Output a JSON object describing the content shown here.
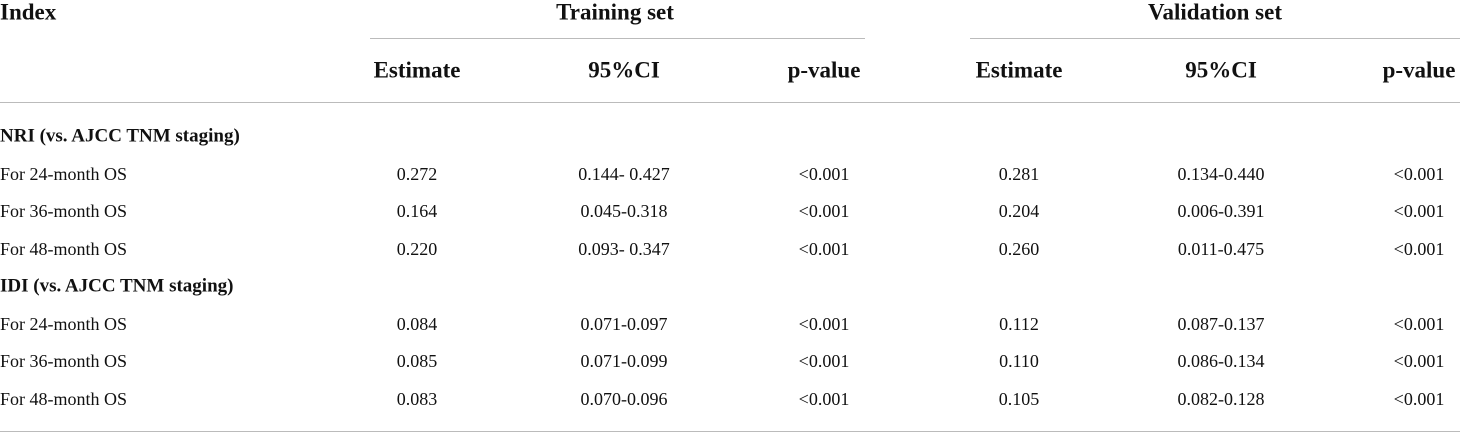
{
  "header": {
    "index": "Index",
    "groups": [
      "Training set",
      "Validation set"
    ],
    "columns": [
      "Estimate",
      "95%CI",
      "p-value",
      "Estimate",
      "95%CI",
      "p-value"
    ]
  },
  "sections": [
    {
      "title": "NRI (vs. AJCC TNM staging)",
      "rows": [
        {
          "label": "For 24-month OS",
          "cells": [
            "0.272",
            "0.144- 0.427",
            "<0.001",
            "0.281",
            "0.134-0.440",
            "<0.001"
          ]
        },
        {
          "label": "For 36-month OS",
          "cells": [
            "0.164",
            "0.045-0.318",
            "<0.001",
            "0.204",
            "0.006-0.391",
            "<0.001"
          ]
        },
        {
          "label": "For 48-month OS",
          "cells": [
            "0.220",
            "0.093- 0.347",
            "<0.001",
            "0.260",
            "0.011-0.475",
            "<0.001"
          ]
        }
      ]
    },
    {
      "title": "IDI (vs. AJCC TNM staging)",
      "rows": [
        {
          "label": "For 24-month OS",
          "cells": [
            "0.084",
            "0.071-0.097",
            "<0.001",
            "0.112",
            "0.087-0.137",
            "<0.001"
          ]
        },
        {
          "label": "For 36-month OS",
          "cells": [
            "0.085",
            "0.071-0.099",
            "<0.001",
            "0.110",
            "0.086-0.134",
            "<0.001"
          ]
        },
        {
          "label": "For 48-month OS",
          "cells": [
            "0.083",
            "0.070-0.096",
            "<0.001",
            "0.105",
            "0.082-0.128",
            "<0.001"
          ]
        }
      ]
    }
  ]
}
